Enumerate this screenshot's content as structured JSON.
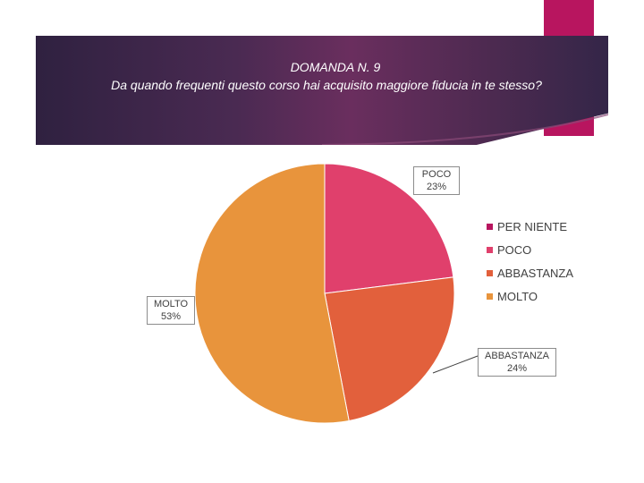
{
  "title": {
    "line1": "DOMANDA N. 9",
    "line2": "Da quando frequenti questo corso hai acquisito maggiore fiducia in te stesso?"
  },
  "chart_data": {
    "type": "pie",
    "title": "Da quando frequenti questo corso hai acquisito maggiore fiducia in te stesso?",
    "categories": [
      "PER NIENTE",
      "POCO",
      "ABBASTANZA",
      "MOLTO"
    ],
    "values": [
      0,
      23,
      24,
      53
    ],
    "unit": "%",
    "colors": [
      "#b8155f",
      "#e0406c",
      "#e2603c",
      "#e8943c"
    ],
    "legend_position": "right",
    "data_labels": {
      "poco": {
        "name": "POCO",
        "value": "23%"
      },
      "abbastanza": {
        "name": "ABBASTANZA",
        "value": "24%"
      },
      "molto": {
        "name": "MOLTO",
        "value": "53%"
      }
    }
  }
}
